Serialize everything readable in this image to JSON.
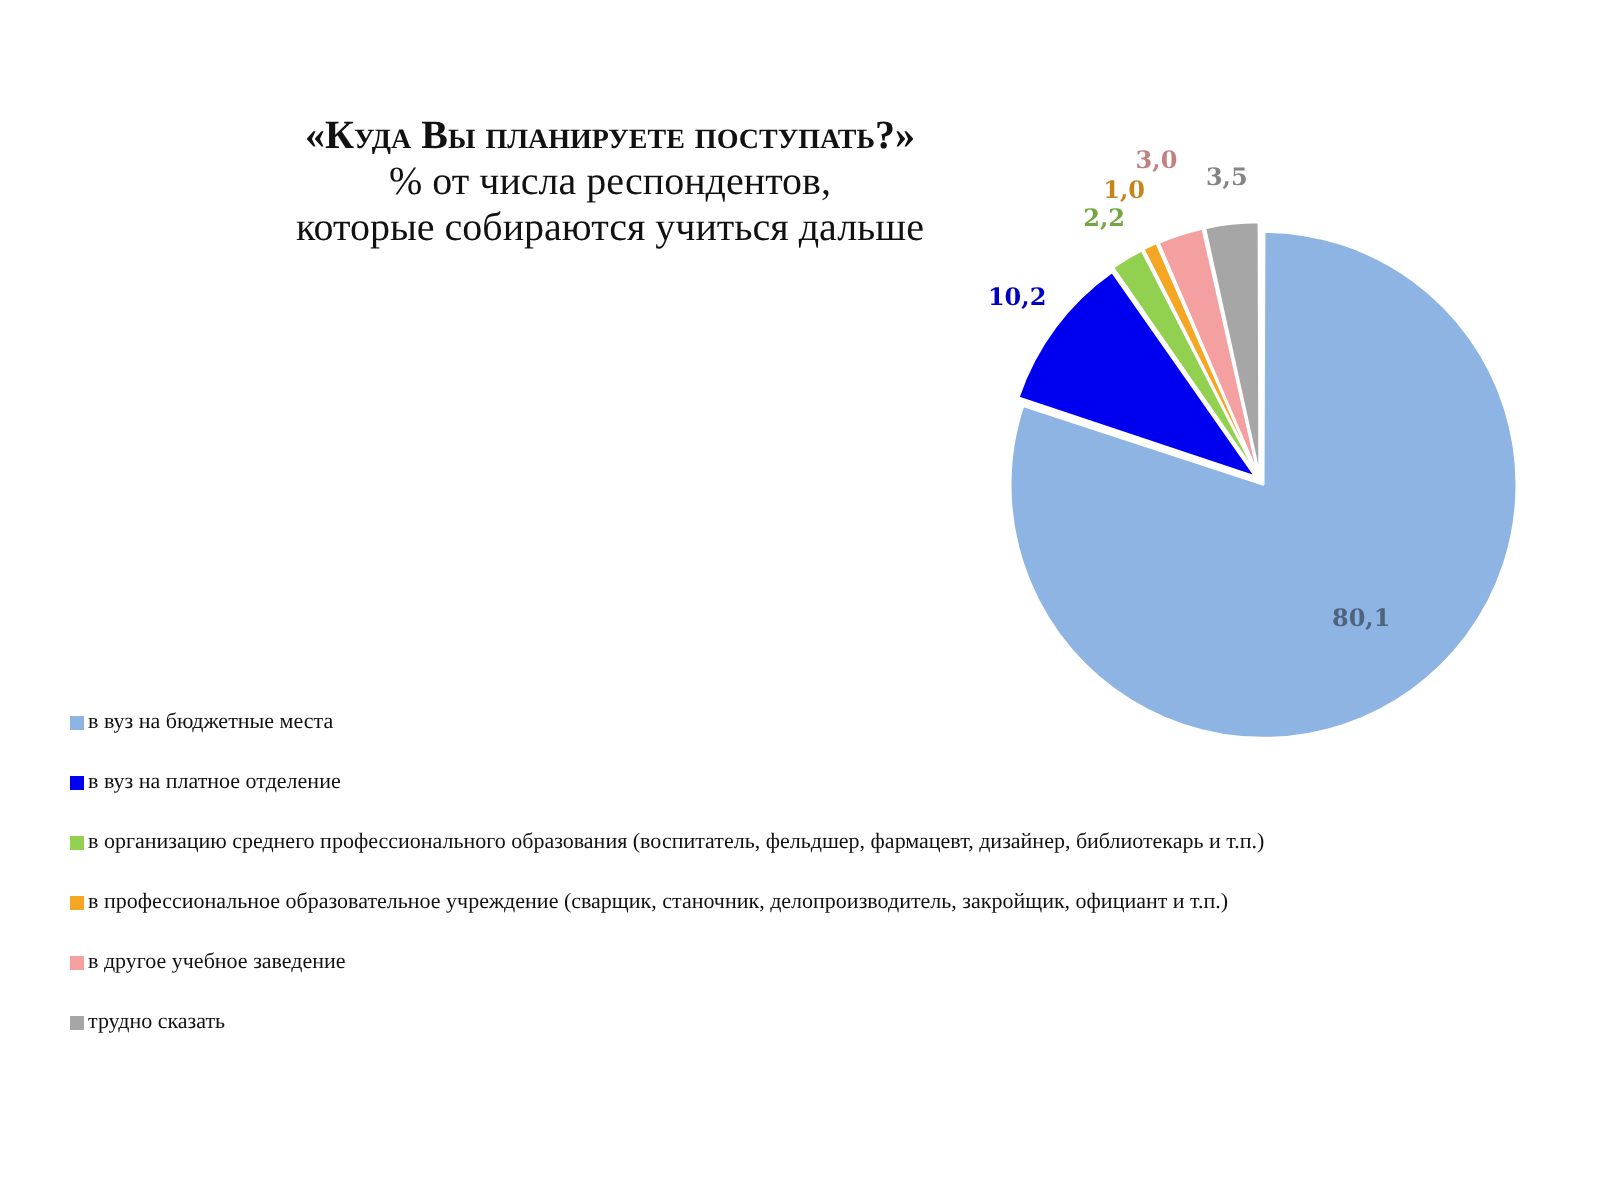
{
  "chart_data": {
    "type": "pie",
    "title": "«Куда Вы планируете поступать?»",
    "subtitle": "% от числа респондентов,\nкоторые собираются учиться дальше",
    "categories": [
      "в вуз на бюджетные места",
      "в вуз на платное отделение",
      "в организацию среднего профессионального образования (воспитатель, фельдшер, фармацевт, дизайнер, библиотекарь и т.п.)",
      "в профессиональное образовательное учреждение (сварщик, станочник, делопроизводитель, закройщик, официант и т.п.)",
      "в другое учебное заведение",
      "трудно сказать"
    ],
    "values": [
      80.1,
      10.2,
      2.2,
      1.0,
      3.0,
      3.5
    ],
    "colors": [
      "#8db4e2",
      "#0000f0",
      "#92d050",
      "#f5a623",
      "#f4a0a0",
      "#a6a6a6"
    ],
    "value_labels": [
      "80,1",
      "10,2",
      "2,2",
      "1,0",
      "3,0",
      "3,5"
    ],
    "legend": "bottom left"
  }
}
